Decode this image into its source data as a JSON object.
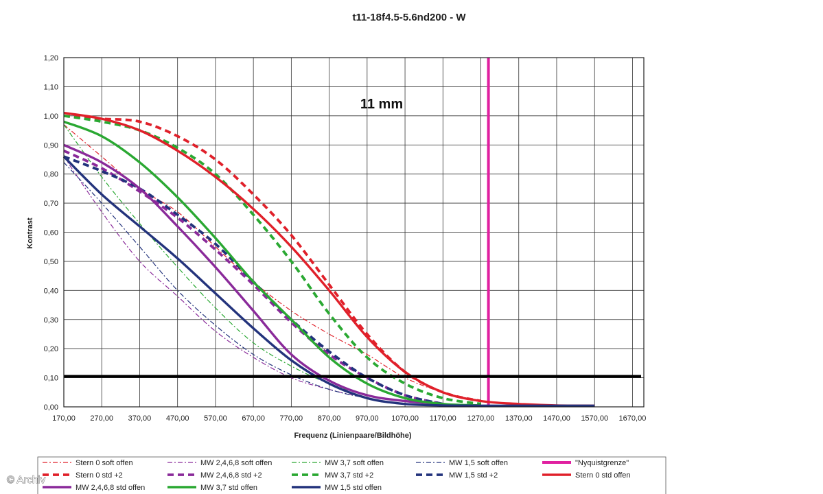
{
  "chart_data": {
    "type": "line",
    "title": "t11-18f4.5-5.6nd200 - W",
    "xlabel": "Frequenz (Linienpaare/Bildhöhe)",
    "ylabel": "Kontrast",
    "annotation": "11 mm",
    "xlim": [
      170,
      1700
    ],
    "ylim": [
      0,
      1.2
    ],
    "x_ticks": [
      "170,00",
      "270,00",
      "370,00",
      "470,00",
      "570,00",
      "670,00",
      "770,00",
      "870,00",
      "970,00",
      "1070,00",
      "1170,00",
      "1270,00",
      "1370,00",
      "1470,00",
      "1570,00",
      "1670,00"
    ],
    "y_ticks": [
      "0,00",
      "0,10",
      "0,20",
      "0,30",
      "0,40",
      "0,50",
      "0,60",
      "0,70",
      "0,80",
      "0,90",
      "1,00",
      "1,10",
      "1,20"
    ],
    "grid": true,
    "legend_position": "bottom",
    "reference_lines": {
      "horizontal_y": 0.105,
      "nyquist_x": 1290
    },
    "series": [
      {
        "name": "Stern 0 soft offen",
        "color": "#e0202a",
        "style": "dashdot",
        "x": [
          170,
          270,
          370,
          470,
          570,
          670,
          770,
          870,
          970,
          1070,
          1170,
          1270
        ],
        "y": [
          0.97,
          0.86,
          0.75,
          0.67,
          0.55,
          0.43,
          0.33,
          0.25,
          0.18,
          0.1,
          0.05,
          0.02
        ]
      },
      {
        "name": "MW 2,4,6,8 soft offen",
        "color": "#8a2a9a",
        "style": "dashdot",
        "x": [
          170,
          270,
          370,
          470,
          570,
          670,
          770,
          870,
          970,
          1070
        ],
        "y": [
          0.86,
          0.67,
          0.5,
          0.38,
          0.26,
          0.17,
          0.1,
          0.06,
          0.03,
          0.01
        ]
      },
      {
        "name": "MW 3,7 soft offen",
        "color": "#2aa832",
        "style": "dashdot",
        "x": [
          170,
          270,
          370,
          470,
          570,
          670,
          770,
          870,
          970,
          1070,
          1170
        ],
        "y": [
          0.97,
          0.79,
          0.63,
          0.48,
          0.34,
          0.22,
          0.14,
          0.08,
          0.04,
          0.02,
          0.01
        ]
      },
      {
        "name": "MW 1,5 soft offen",
        "color": "#23337c",
        "style": "dashdot",
        "x": [
          170,
          270,
          370,
          470,
          570,
          670,
          770,
          870,
          970,
          1070
        ],
        "y": [
          0.84,
          0.7,
          0.55,
          0.4,
          0.28,
          0.18,
          0.11,
          0.06,
          0.03,
          0.01
        ]
      },
      {
        "name": "\"Nyquistgrenze\"",
        "color": "#e020a0",
        "style": "solid",
        "x": [
          1290,
          1290
        ],
        "y": [
          0,
          1.2
        ]
      },
      {
        "name": "Stern 0 std +2",
        "color": "#e0202a",
        "style": "dashed",
        "x": [
          170,
          270,
          370,
          470,
          570,
          670,
          770,
          870,
          970,
          1070,
          1170,
          1270
        ],
        "y": [
          1.0,
          0.99,
          0.98,
          0.93,
          0.85,
          0.73,
          0.59,
          0.42,
          0.25,
          0.12,
          0.05,
          0.02
        ]
      },
      {
        "name": "MW 2,4,6,8 std +2",
        "color": "#8a2a9a",
        "style": "dashed",
        "x": [
          170,
          270,
          370,
          470,
          570,
          670,
          770,
          870,
          970,
          1070,
          1170
        ],
        "y": [
          0.88,
          0.82,
          0.74,
          0.65,
          0.54,
          0.42,
          0.29,
          0.18,
          0.1,
          0.04,
          0.01
        ]
      },
      {
        "name": "MW 3,7 std +2",
        "color": "#2aa832",
        "style": "dashed",
        "x": [
          170,
          270,
          370,
          470,
          570,
          670,
          770,
          870,
          970,
          1070,
          1170,
          1270
        ],
        "y": [
          1.0,
          0.98,
          0.95,
          0.89,
          0.8,
          0.66,
          0.5,
          0.32,
          0.17,
          0.08,
          0.03,
          0.01
        ]
      },
      {
        "name": "MW 1,5 std +2",
        "color": "#23337c",
        "style": "dashed",
        "x": [
          170,
          270,
          370,
          470,
          570,
          670,
          770,
          870,
          970,
          1070,
          1170
        ],
        "y": [
          0.86,
          0.81,
          0.75,
          0.66,
          0.56,
          0.43,
          0.3,
          0.19,
          0.1,
          0.04,
          0.01
        ]
      },
      {
        "name": "Stern 0 std offen",
        "color": "#e0202a",
        "style": "solid",
        "x": [
          170,
          270,
          370,
          470,
          570,
          670,
          770,
          870,
          970,
          1070,
          1170,
          1270,
          1370,
          1470,
          1570
        ],
        "y": [
          1.01,
          0.99,
          0.95,
          0.88,
          0.79,
          0.68,
          0.55,
          0.4,
          0.24,
          0.12,
          0.05,
          0.02,
          0.01,
          0.005,
          0.004
        ]
      },
      {
        "name": "MW 2,4,6,8 std offen",
        "color": "#8a2a9a",
        "style": "solid",
        "x": [
          170,
          270,
          370,
          470,
          570,
          670,
          770,
          870,
          970,
          1070,
          1170
        ],
        "y": [
          0.9,
          0.84,
          0.75,
          0.62,
          0.48,
          0.33,
          0.18,
          0.09,
          0.04,
          0.02,
          0.01
        ]
      },
      {
        "name": "MW 3,7 std offen",
        "color": "#2aa832",
        "style": "solid",
        "x": [
          170,
          270,
          370,
          470,
          570,
          670,
          770,
          870,
          970,
          1070,
          1170,
          1270
        ],
        "y": [
          0.98,
          0.93,
          0.84,
          0.72,
          0.58,
          0.43,
          0.3,
          0.17,
          0.08,
          0.03,
          0.01,
          0.005
        ]
      },
      {
        "name": "MW 1,5 std offen",
        "color": "#23337c",
        "style": "solid",
        "x": [
          170,
          270,
          370,
          470,
          570,
          670,
          770,
          870,
          970,
          1070,
          1170,
          1270,
          1370,
          1470,
          1570
        ],
        "y": [
          0.86,
          0.73,
          0.62,
          0.51,
          0.39,
          0.27,
          0.16,
          0.08,
          0.03,
          0.01,
          0.005,
          0.004,
          0.004,
          0.004,
          0.004
        ]
      }
    ]
  },
  "watermark": "© Archiv"
}
